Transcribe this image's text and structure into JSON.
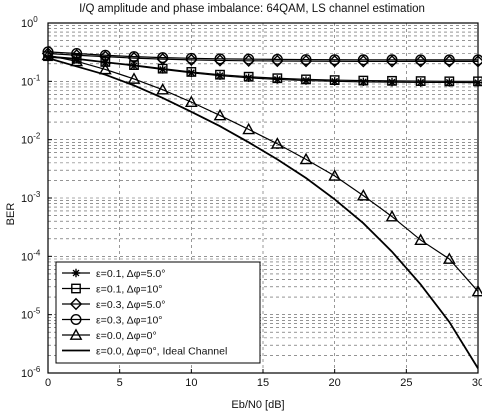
{
  "chart_data": {
    "type": "line",
    "title": "I/Q amplitude and phase imbalance: 64QAM, LS channel estimation",
    "xlabel": "Eb/N0 [dB]",
    "ylabel": "BER",
    "xlim": [
      0,
      30
    ],
    "ylim": [
      1e-06,
      1
    ],
    "yscale": "log",
    "grid": true,
    "legend_position": "bottom-left",
    "x_ticks": [
      "0",
      "5",
      "10",
      "15",
      "20",
      "25",
      "30"
    ],
    "y_ticks": [
      {
        "base": "10",
        "exp": "0"
      },
      {
        "base": "10",
        "exp": "-1"
      },
      {
        "base": "10",
        "exp": "-2"
      },
      {
        "base": "10",
        "exp": "-3"
      },
      {
        "base": "10",
        "exp": "-4"
      },
      {
        "base": "10",
        "exp": "-5"
      },
      {
        "base": "10",
        "exp": "-6"
      }
    ],
    "x": [
      0,
      2,
      4,
      6,
      8,
      10,
      12,
      14,
      16,
      18,
      20,
      22,
      24,
      26,
      28,
      30
    ],
    "series": [
      {
        "name": "ε=0.1, Δφ=5.0°",
        "marker": "star",
        "values": [
          0.26,
          0.24,
          0.21,
          0.185,
          0.16,
          0.14,
          0.125,
          0.115,
          0.108,
          0.103,
          0.1,
          0.098,
          0.097,
          0.096,
          0.096,
          0.095
        ]
      },
      {
        "name": "ε=0.1, Δφ=10°",
        "marker": "square",
        "values": [
          0.27,
          0.245,
          0.215,
          0.19,
          0.165,
          0.145,
          0.13,
          0.12,
          0.113,
          0.108,
          0.105,
          0.103,
          0.102,
          0.101,
          0.1,
          0.1
        ]
      },
      {
        "name": "ε=0.3, Δφ=5.0°",
        "marker": "diamond",
        "values": [
          0.3,
          0.28,
          0.265,
          0.25,
          0.24,
          0.233,
          0.228,
          0.225,
          0.223,
          0.222,
          0.221,
          0.22,
          0.22,
          0.22,
          0.22,
          0.22
        ]
      },
      {
        "name": "ε=0.3, Δφ=10°",
        "marker": "circle",
        "values": [
          0.32,
          0.3,
          0.28,
          0.265,
          0.255,
          0.248,
          0.243,
          0.24,
          0.238,
          0.236,
          0.235,
          0.234,
          0.234,
          0.233,
          0.233,
          0.233
        ]
      },
      {
        "name": "ε=0.0, Δφ=0°",
        "marker": "triangle",
        "values": [
          0.28,
          0.22,
          0.16,
          0.11,
          0.072,
          0.044,
          0.026,
          0.015,
          0.0085,
          0.0046,
          0.0024,
          0.0011,
          0.00048,
          0.00019,
          9e-05,
          2.5e-05
        ]
      },
      {
        "name": "ε=0.0, Δφ=0°, Ideal Channel",
        "marker": "none",
        "values": [
          0.25,
          0.18,
          0.13,
          0.085,
          0.052,
          0.03,
          0.017,
          0.009,
          0.0046,
          0.0022,
          0.00095,
          0.00037,
          0.00012,
          3.3e-05,
          7.5e-06,
          1.2e-06
        ]
      }
    ]
  }
}
